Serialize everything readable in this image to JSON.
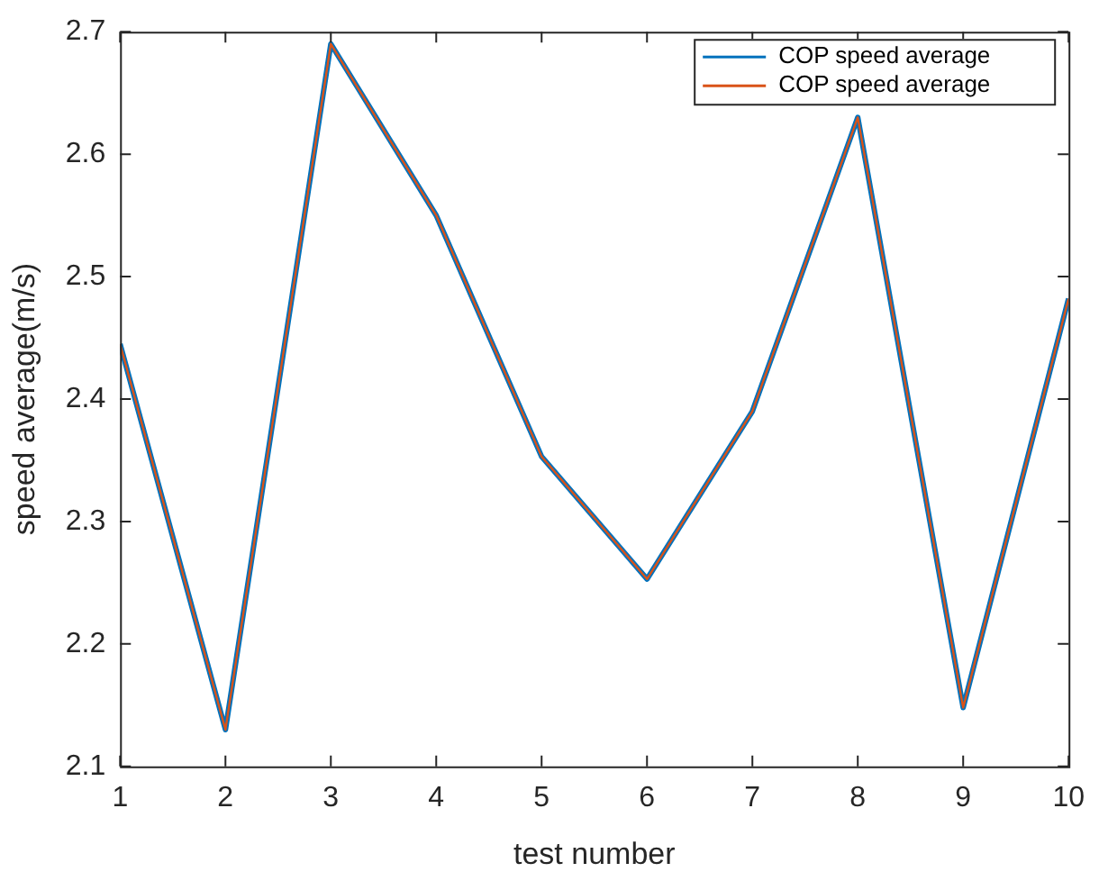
{
  "chart_data": {
    "type": "line",
    "xlabel": "test number",
    "ylabel": "speed average(m/s)",
    "x": [
      1,
      2,
      3,
      4,
      5,
      6,
      7,
      8,
      9,
      10
    ],
    "series": [
      {
        "name": "COP speed average",
        "color": "#0072bd",
        "values": [
          2.445,
          2.13,
          2.69,
          2.55,
          2.353,
          2.253,
          2.39,
          2.63,
          2.148,
          2.482
        ]
      },
      {
        "name": "COP speed average",
        "color": "#d95319",
        "values": [
          2.445,
          2.13,
          2.69,
          2.55,
          2.353,
          2.253,
          2.39,
          2.63,
          2.148,
          2.482
        ]
      }
    ],
    "xlim": [
      1,
      10
    ],
    "xticks": [
      1,
      2,
      3,
      4,
      5,
      6,
      7,
      8,
      9,
      10
    ],
    "ylim": [
      2.1,
      2.7
    ],
    "yticks": [
      2.1,
      2.2,
      2.3,
      2.4,
      2.5,
      2.6,
      2.7
    ],
    "grid": false,
    "legend": "top right",
    "marker": "none",
    "line_style": "solid"
  }
}
